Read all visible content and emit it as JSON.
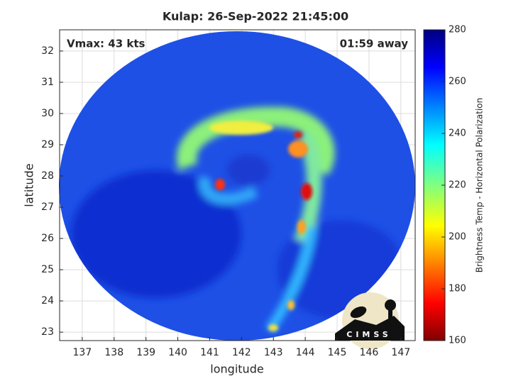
{
  "chart_data": {
    "type": "image",
    "title": "Kulap: 26-Sep-2022 21:45:00",
    "xlabel": "longitude",
    "ylabel": "latitude",
    "xlim": [
      136.29,
      147.45
    ],
    "xticks": [
      137,
      138,
      139,
      140,
      141,
      142,
      143,
      144,
      145,
      146,
      147
    ],
    "ylim": [
      22.73,
      32.68
    ],
    "yticks": [
      23,
      24,
      25,
      26,
      27,
      28,
      29,
      30,
      31,
      32
    ],
    "grid": true,
    "annotations": [
      "Vmax: 43 kts",
      "01:59 away"
    ],
    "colorbar": {
      "label": "Brightness Temp - Horizontal Polarization",
      "lim": [
        160,
        280
      ],
      "ticks": [
        160,
        180,
        200,
        220,
        240,
        260,
        280
      ]
    },
    "logo": "CIMSS"
  }
}
